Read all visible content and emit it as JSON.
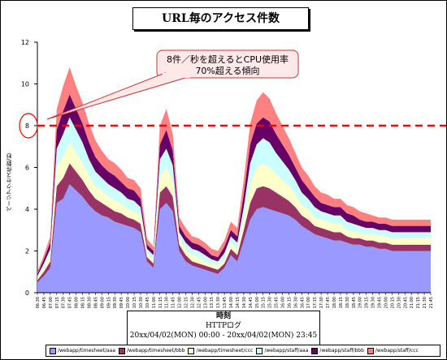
{
  "chart_data": {
    "type": "area",
    "stacked": true,
    "title": "URL毎のアクセス件数",
    "ylabel": "ページアクセス件数/秒",
    "ylim": [
      0,
      12
    ],
    "yticks": [
      0,
      2,
      4,
      6,
      8,
      10,
      12
    ],
    "threshold": 8,
    "categories": [
      "06:30",
      "06:45",
      "07:00",
      "07:15",
      "07:30",
      "07:45",
      "08:00",
      "08:15",
      "08:30",
      "08:45",
      "09:00",
      "09:15",
      "09:30",
      "09:45",
      "10:00",
      "10:15",
      "10:30",
      "10:45",
      "11:00",
      "11:15",
      "11:30",
      "11:45",
      "12:00",
      "12:15",
      "12:30",
      "12:45",
      "13:00",
      "13:15",
      "13:30",
      "13:45",
      "14:00",
      "14:15",
      "14:30",
      "14:45",
      "15:00",
      "15:15",
      "15:30",
      "15:45",
      "16:00",
      "16:15",
      "16:30",
      "16:45",
      "17:00",
      "17:15",
      "17:30",
      "17:45",
      "18:00",
      "18:15",
      "18:30",
      "18:45",
      "19:00",
      "19:15",
      "19:30",
      "19:45",
      "20:00",
      "20:15",
      "20:30",
      "20:45",
      "21:00",
      "21:15",
      "21:30",
      "21:45"
    ],
    "series": [
      {
        "name": "/webapp/timesheet/aaa",
        "color": "#9999ff",
        "values": [
          0.5,
          0.8,
          1.2,
          4.3,
          4.5,
          5.2,
          4.9,
          4.6,
          4.2,
          3.9,
          3.7,
          3.6,
          3.4,
          3.3,
          3.2,
          3.1,
          2.9,
          1.5,
          1.2,
          4.0,
          4.3,
          3.9,
          2.0,
          1.5,
          1.3,
          1.2,
          1.1,
          1.0,
          0.9,
          1.2,
          1.8,
          1.5,
          2.5,
          3.5,
          4.0,
          4.1,
          4.0,
          3.9,
          3.8,
          3.7,
          3.5,
          3.2,
          3.0,
          2.8,
          2.7,
          2.6,
          2.5,
          2.5,
          2.4,
          2.3,
          2.3,
          2.2,
          2.2,
          2.1,
          2.1,
          2.0,
          2.0,
          2.0,
          2.0,
          2.0,
          2.0,
          2.0
        ]
      },
      {
        "name": "/webapp/timesheet/bbb",
        "color": "#993366",
        "values": [
          0.1,
          0.2,
          0.3,
          0.8,
          1.0,
          1.0,
          0.9,
          0.8,
          0.7,
          0.6,
          0.6,
          0.5,
          0.5,
          0.5,
          0.4,
          0.4,
          0.4,
          0.2,
          0.2,
          0.8,
          0.8,
          0.7,
          0.3,
          0.3,
          0.2,
          0.2,
          0.2,
          0.2,
          0.2,
          0.2,
          0.3,
          0.3,
          0.5,
          0.8,
          1.0,
          1.0,
          1.0,
          0.9,
          0.8,
          0.7,
          0.6,
          0.5,
          0.5,
          0.4,
          0.4,
          0.4,
          0.4,
          0.4,
          0.3,
          0.3,
          0.3,
          0.3,
          0.3,
          0.3,
          0.3,
          0.3,
          0.3,
          0.3,
          0.3,
          0.3,
          0.3,
          0.3
        ]
      },
      {
        "name": "/webapp/timesheet/ccc",
        "color": "#ffffcc",
        "values": [
          0.1,
          0.2,
          0.3,
          0.9,
          1.0,
          1.0,
          0.9,
          0.8,
          0.7,
          0.6,
          0.6,
          0.5,
          0.5,
          0.5,
          0.4,
          0.4,
          0.4,
          0.2,
          0.2,
          0.8,
          0.9,
          0.7,
          0.3,
          0.3,
          0.3,
          0.3,
          0.2,
          0.2,
          0.2,
          0.2,
          0.3,
          0.3,
          0.5,
          0.9,
          1.0,
          1.1,
          1.0,
          0.9,
          0.8,
          0.7,
          0.6,
          0.5,
          0.5,
          0.4,
          0.4,
          0.4,
          0.4,
          0.4,
          0.3,
          0.3,
          0.3,
          0.3,
          0.3,
          0.3,
          0.3,
          0.3,
          0.3,
          0.3,
          0.3,
          0.3,
          0.3,
          0.3
        ]
      },
      {
        "name": "/webapp/staff/aaa",
        "color": "#ccffff",
        "values": [
          0.1,
          0.2,
          0.3,
          0.9,
          1.1,
          1.2,
          1.1,
          1.0,
          0.8,
          0.7,
          0.6,
          0.6,
          0.6,
          0.5,
          0.5,
          0.5,
          0.4,
          0.2,
          0.2,
          0.8,
          0.9,
          0.8,
          0.3,
          0.3,
          0.3,
          0.3,
          0.3,
          0.2,
          0.2,
          0.3,
          0.3,
          0.3,
          0.6,
          1.0,
          1.1,
          1.2,
          1.2,
          1.0,
          0.9,
          0.8,
          0.7,
          0.6,
          0.5,
          0.5,
          0.4,
          0.4,
          0.4,
          0.4,
          0.4,
          0.4,
          0.3,
          0.3,
          0.3,
          0.3,
          0.3,
          0.3,
          0.3,
          0.3,
          0.3,
          0.3,
          0.3,
          0.3
        ]
      },
      {
        "name": "/webapp/staff/bbb",
        "color": "#660066",
        "values": [
          0.1,
          0.2,
          0.3,
          0.9,
          1.1,
          1.1,
          1.0,
          0.9,
          0.8,
          0.7,
          0.6,
          0.6,
          0.6,
          0.5,
          0.5,
          0.5,
          0.4,
          0.2,
          0.2,
          0.7,
          0.9,
          0.7,
          0.3,
          0.3,
          0.3,
          0.3,
          0.3,
          0.2,
          0.2,
          0.3,
          0.3,
          0.3,
          0.6,
          0.9,
          1.0,
          1.0,
          1.0,
          0.9,
          0.8,
          0.7,
          0.6,
          0.6,
          0.5,
          0.5,
          0.4,
          0.4,
          0.4,
          0.4,
          0.4,
          0.4,
          0.3,
          0.3,
          0.3,
          0.3,
          0.3,
          0.3,
          0.3,
          0.3,
          0.3,
          0.3,
          0.3,
          0.3
        ]
      },
      {
        "name": "/webapp/staff/ccc",
        "color": "#ff8080",
        "values": [
          0.1,
          0.2,
          0.3,
          1.0,
          1.2,
          1.3,
          1.1,
          1.0,
          0.9,
          0.8,
          0.7,
          0.6,
          0.6,
          0.6,
          0.5,
          0.5,
          0.5,
          0.3,
          0.2,
          0.9,
          1.0,
          0.8,
          0.4,
          0.4,
          0.3,
          0.3,
          0.3,
          0.3,
          0.3,
          0.3,
          0.4,
          0.4,
          0.7,
          1.0,
          1.1,
          1.2,
          1.1,
          1.0,
          0.9,
          0.8,
          0.7,
          0.6,
          0.6,
          0.5,
          0.5,
          0.5,
          0.4,
          0.4,
          0.4,
          0.4,
          0.4,
          0.4,
          0.3,
          0.3,
          0.3,
          0.3,
          0.3,
          0.3,
          0.3,
          0.3,
          0.3,
          0.3
        ]
      }
    ],
    "xaxis_title": "時刻",
    "xaxis_sub1": "HTTPログ",
    "xaxis_sub2": "20xx/04/02(MON) 00:00 - 20xx/04/02(MON) 23:45",
    "annotation": "8件／秒を超えるとCPU使用率70%超える傾向"
  }
}
